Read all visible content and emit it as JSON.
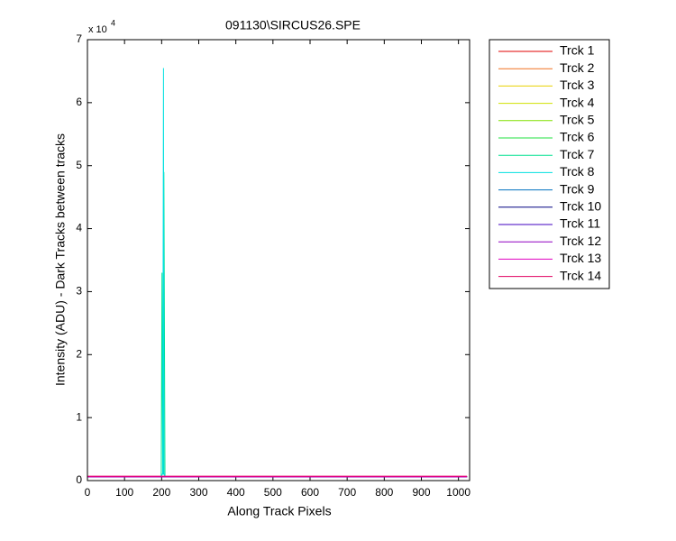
{
  "chart_data": {
    "type": "line",
    "title": "091130\\SIRCUS26.SPE",
    "x_label": "Along Track Pixels",
    "y_label": "Intensity (ADU) - Dark Tracks between tracks",
    "y_multiplier": {
      "base": "x 10",
      "exponent": "4"
    },
    "xlim": [
      0,
      1030
    ],
    "ylim": [
      0,
      70000
    ],
    "xticks": [
      0,
      100,
      200,
      300,
      400,
      500,
      600,
      700,
      800,
      900,
      1000
    ],
    "yticks": [
      {
        "value": 0,
        "label": "0"
      },
      {
        "value": 10000,
        "label": "1"
      },
      {
        "value": 20000,
        "label": "2"
      },
      {
        "value": 30000,
        "label": "3"
      },
      {
        "value": 40000,
        "label": "4"
      },
      {
        "value": 50000,
        "label": "5"
      },
      {
        "value": 60000,
        "label": "6"
      },
      {
        "value": 70000,
        "label": "7"
      }
    ],
    "legend_position": "outside-right",
    "x": [
      0,
      199,
      201,
      203,
      205,
      206,
      208,
      209,
      1023
    ],
    "series": [
      {
        "name": "Trck 1",
        "color": "#e00000",
        "values": [
          600,
          600,
          600,
          600,
          600,
          600,
          600,
          600,
          600
        ]
      },
      {
        "name": "Trck 2",
        "color": "#f07020",
        "values": [
          600,
          600,
          600,
          600,
          600,
          600,
          600,
          600,
          600
        ]
      },
      {
        "name": "Trck 3",
        "color": "#e8d000",
        "values": [
          600,
          600,
          600,
          600,
          600,
          600,
          600,
          600,
          600
        ]
      },
      {
        "name": "Trck 4",
        "color": "#d0e000",
        "values": [
          600,
          600,
          600,
          600,
          600,
          600,
          600,
          600,
          600
        ]
      },
      {
        "name": "Trck 5",
        "color": "#80e000",
        "values": [
          600,
          600,
          600,
          600,
          600,
          600,
          600,
          600,
          600
        ]
      },
      {
        "name": "Trck 6",
        "color": "#20e040",
        "values": [
          600,
          600,
          1000,
          1000,
          1000,
          1000,
          1000,
          600,
          600
        ]
      },
      {
        "name": "Trck 7",
        "color": "#00e090",
        "values": [
          600,
          600,
          33000,
          1000,
          1000,
          49000,
          17000,
          600,
          600
        ]
      },
      {
        "name": "Trck 8",
        "color": "#00e0e0",
        "values": [
          600,
          600,
          1000,
          1000,
          65500,
          1000,
          1000,
          600,
          600
        ]
      },
      {
        "name": "Trck 9",
        "color": "#0070c0",
        "values": [
          600,
          600,
          600,
          600,
          600,
          600,
          600,
          600,
          600
        ]
      },
      {
        "name": "Trck 10",
        "color": "#000080",
        "values": [
          600,
          600,
          600,
          600,
          600,
          600,
          600,
          600,
          600
        ]
      },
      {
        "name": "Trck 11",
        "color": "#4000c0",
        "values": [
          600,
          600,
          600,
          600,
          600,
          600,
          600,
          600,
          600
        ]
      },
      {
        "name": "Trck 12",
        "color": "#9000c0",
        "values": [
          600,
          600,
          600,
          600,
          600,
          600,
          600,
          600,
          600
        ]
      },
      {
        "name": "Trck 13",
        "color": "#e000c0",
        "values": [
          600,
          600,
          600,
          600,
          600,
          600,
          600,
          600,
          600
        ]
      },
      {
        "name": "Trck 14",
        "color": "#e00060",
        "values": [
          700,
          700,
          700,
          700,
          700,
          700,
          700,
          700,
          700
        ]
      }
    ]
  }
}
